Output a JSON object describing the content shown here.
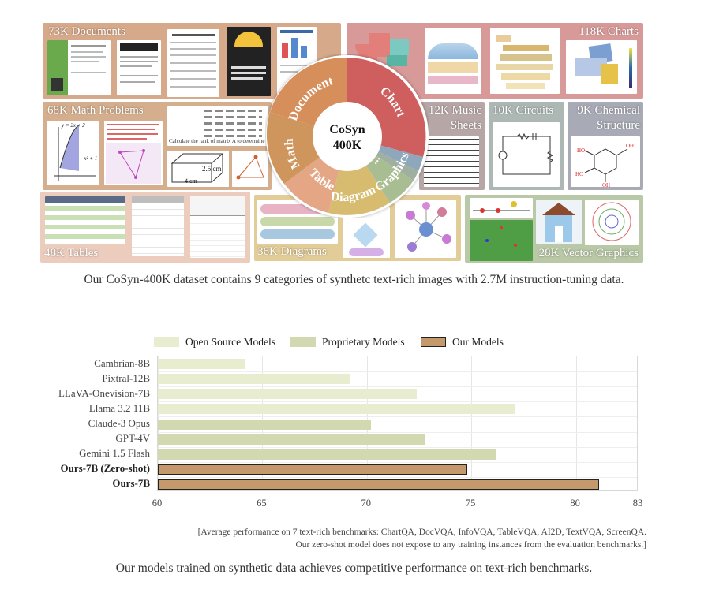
{
  "figure_top": {
    "panels": {
      "documents": "73K Documents",
      "charts": "118K Charts",
      "math": "68K Math Problems",
      "music": [
        "12K Music",
        "Sheets"
      ],
      "circuits": "10K Circuits",
      "chemical": [
        "9K Chemical",
        "Structure"
      ],
      "tables": "48K Tables",
      "diagrams": "36K Diagrams",
      "vector": "28K Vector Graphics"
    },
    "wheel": {
      "center_line1": "CoSyn",
      "center_line2": "400K",
      "segments": [
        "Document",
        "Chart",
        "...",
        "Graphics",
        "Diagram",
        "Table",
        "Math"
      ]
    },
    "math_snippets": {
      "eq1": "y = 2x + 2",
      "eq2": "-x² + 1",
      "prompt": "Calculate the rank of matrix A to determine the rank",
      "dim1": "2.5 cm",
      "dim2": "4 cm"
    }
  },
  "caption_top": "Our CoSyn-400K dataset contains 9 categories of synthetc text-rich images with 2.7M instruction-tuning data.",
  "chart_data": {
    "type": "bar",
    "orientation": "horizontal",
    "categories": [
      "Cambrian-8B",
      "Pixtral-12B",
      "LLaVA-Onevision-7B",
      "Llama 3.2 11B",
      "Claude-3 Opus",
      "GPT-4V",
      "Gemini 1.5 Flash",
      "Ours-7B (Zero-shot)",
      "Ours-7B"
    ],
    "values": [
      64.2,
      69.2,
      72.4,
      77.1,
      70.2,
      72.8,
      76.2,
      74.8,
      81.1
    ],
    "groups": [
      "Open Source Models",
      "Open Source Models",
      "Open Source Models",
      "Open Source Models",
      "Proprietary Models",
      "Proprietary Models",
      "Proprietary Models",
      "Our Models",
      "Our Models"
    ],
    "legend": [
      "Open Source Models",
      "Proprietary Models",
      "Our Models"
    ],
    "legend_position": "top",
    "colors": {
      "Open Source Models": "#e8edcf",
      "Proprietary Models": "#d2d9b0",
      "Our Models": "#c49a6c"
    },
    "xlim": [
      60,
      83
    ],
    "xticks": [
      "60",
      "65",
      "70",
      "75",
      "80",
      "83"
    ],
    "grid": true
  },
  "note_line1": "[Average performance on 7 text-rich benchmarks: ChartQA, DocVQA, InfoVQA, TableVQA, AI2D, TextVQA, ScreenQA.",
  "note_line2": "Our zero-shot model does not expose to any training instances from the evaluation benchmarks.]",
  "caption_bottom": "Our models trained on synthetic data achieves competitive performance on text-rich benchmarks."
}
